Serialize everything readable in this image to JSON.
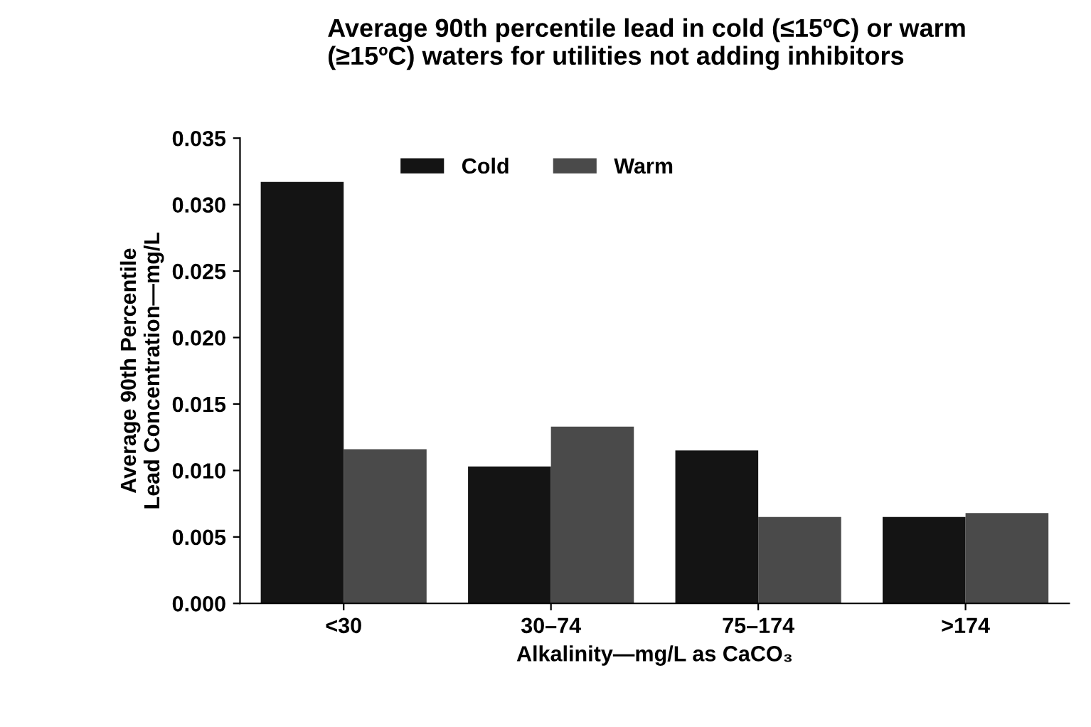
{
  "chart_data": {
    "type": "bar",
    "title": "Average 90th percentile lead in cold (≤15ºC) or warm\n(≥15ºC) waters for utilities not adding inhibitors",
    "xlabel": "Alkalinity—mg/L as CaCO₃",
    "ylabel": "Average 90th Percentile\nLead Concentration—mg/L",
    "categories": [
      "<30",
      "30–74",
      "75–174",
      ">174"
    ],
    "series": [
      {
        "name": "Cold",
        "color": "#141414",
        "values": [
          0.0317,
          0.0103,
          0.0115,
          0.0065
        ]
      },
      {
        "name": "Warm",
        "color": "#4a4a4a",
        "values": [
          0.0116,
          0.0133,
          0.0065,
          0.0068
        ]
      }
    ],
    "ylim": [
      0,
      0.035
    ],
    "yticks": [
      {
        "value": 0,
        "label": "0.000"
      },
      0.005,
      {
        "value": 0.01,
        "label": "0.010"
      },
      0.015,
      {
        "value": 0.02,
        "label": "0.020"
      },
      0.025,
      {
        "value": 0.03,
        "label": "0.030"
      },
      0.035
    ],
    "grid": false,
    "legend": "top left"
  }
}
